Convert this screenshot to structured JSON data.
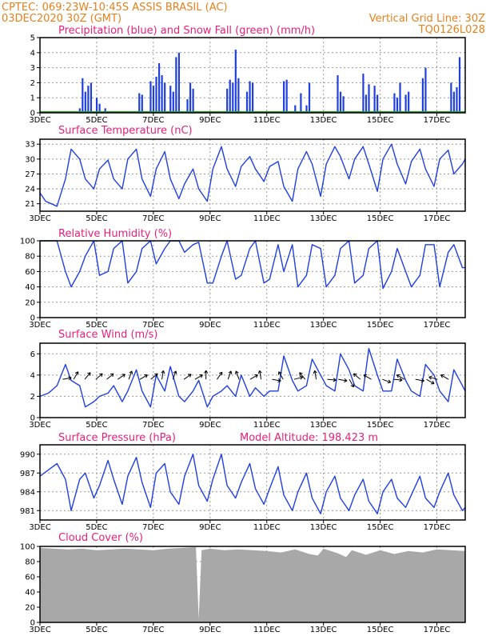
{
  "header": {
    "line1": "CPTEC:    069:23W-10:45S   ASSIS BRASIL (AC)",
    "line2_left": "03DEC2020 30Z (GMT)",
    "line2_right": "Vertical Grid Line: 30Z",
    "line3_right": "TQ0126L028"
  },
  "colors": {
    "header": "#e8801a",
    "panel_title": "#e8207a",
    "series_blue": "#1f3fe0",
    "snow_green": "#2a9a2a",
    "cloud_gray": "#a8a8a8"
  },
  "x_axis_labels": [
    "3DEC",
    "5DEC",
    "7DEC",
    "9DEC",
    "11DEC",
    "13DEC",
    "15DEC",
    "17DEC"
  ],
  "chart_data": [
    {
      "type": "bar",
      "title": "Precipitation (blue) and Snow Fall (green) (mm/h)",
      "ylim": [
        0,
        5
      ],
      "yticks": [
        "0",
        "1",
        "2",
        "3",
        "4",
        "5"
      ],
      "series": [
        {
          "name": "Precipitation",
          "color": "#1f3fe0",
          "x": [
            4.4,
            4.5,
            4.6,
            4.7,
            4.8,
            5.0,
            5.1,
            5.3,
            5.4,
            6.5,
            6.6,
            6.9,
            7.0,
            7.1,
            7.2,
            7.3,
            7.4,
            7.6,
            7.7,
            7.8,
            7.9,
            8.2,
            8.3,
            8.4,
            9.6,
            9.7,
            9.8,
            9.9,
            10.0,
            10.3,
            10.4,
            10.5,
            11.6,
            11.7,
            11.8,
            12.0,
            12.2,
            12.4,
            12.5,
            13.5,
            13.6,
            13.7,
            14.4,
            14.5,
            14.6,
            14.8,
            14.9,
            15.5,
            15.6,
            15.7,
            15.9,
            16.0,
            16.5,
            16.6,
            17.5,
            17.6,
            17.7,
            17.8
          ],
          "y": [
            0.3,
            2.3,
            1.4,
            1.8,
            2.0,
            1.0,
            0.6,
            0.3,
            0.1,
            1.3,
            1.2,
            2.1,
            1.8,
            2.4,
            3.3,
            2.5,
            2.0,
            1.8,
            1.4,
            3.7,
            4.0,
            0.9,
            2.0,
            1.6,
            1.6,
            2.2,
            2.0,
            4.2,
            2.3,
            1.4,
            2.1,
            2.0,
            2.1,
            2.2,
            0.1,
            0.5,
            1.3,
            0.5,
            2.0,
            2.5,
            1.4,
            1.1,
            2.6,
            1.2,
            1.9,
            1.8,
            1.2,
            1.3,
            1.0,
            2.0,
            1.2,
            1.4,
            2.3,
            3.0,
            2.0,
            1.4,
            1.7,
            3.7
          ]
        },
        {
          "name": "Snow Fall",
          "color": "#2a9a2a",
          "x": [
            3.0,
            18.0
          ],
          "y": [
            0,
            0
          ]
        }
      ]
    },
    {
      "type": "line",
      "title": "Surface Temperature (nC)",
      "ylim": [
        19.5,
        34
      ],
      "yticks": [
        "21",
        "24",
        "27",
        "30",
        "33"
      ],
      "series": [
        {
          "name": "Temperature",
          "color": "#1f3fe0",
          "x": [
            3.0,
            3.2,
            3.4,
            3.6,
            3.9,
            4.1,
            4.4,
            4.6,
            4.9,
            5.1,
            5.4,
            5.6,
            5.9,
            6.1,
            6.4,
            6.6,
            6.9,
            7.1,
            7.4,
            7.6,
            7.9,
            8.1,
            8.4,
            8.6,
            8.9,
            9.1,
            9.4,
            9.6,
            9.9,
            10.1,
            10.4,
            10.6,
            10.9,
            11.1,
            11.4,
            11.6,
            11.9,
            12.1,
            12.4,
            12.6,
            12.9,
            13.1,
            13.4,
            13.6,
            13.9,
            14.1,
            14.4,
            14.6,
            14.9,
            15.1,
            15.4,
            15.6,
            15.9,
            16.1,
            16.4,
            16.6,
            16.9,
            17.1,
            17.4,
            17.6,
            17.9,
            18.0
          ],
          "y": [
            23.2,
            21.5,
            21.0,
            20.5,
            26.0,
            32.0,
            30.0,
            26.0,
            24.0,
            28.0,
            29.8,
            26.0,
            24.0,
            30.0,
            32.0,
            26.0,
            22.5,
            28.0,
            31.5,
            26.0,
            22.0,
            25.0,
            28.0,
            24.0,
            21.5,
            28.0,
            32.5,
            28.0,
            24.5,
            28.5,
            30.5,
            28.0,
            25.5,
            28.5,
            29.5,
            24.5,
            21.5,
            28.0,
            31.5,
            29.0,
            22.5,
            29.0,
            32.5,
            30.5,
            26.0,
            30.0,
            32.5,
            29.0,
            23.5,
            30.0,
            33.0,
            29.0,
            25.0,
            29.5,
            32.0,
            28.0,
            24.5,
            30.0,
            31.8,
            27.0,
            29.0,
            30.0
          ]
        }
      ]
    },
    {
      "type": "line",
      "title": "Relative Humidity (%)",
      "ylim": [
        0,
        100
      ],
      "yticks": [
        "0",
        "20",
        "40",
        "60",
        "80",
        "100"
      ],
      "series": [
        {
          "name": "Relative Humidity",
          "color": "#1f3fe0",
          "x": [
            3.0,
            3.3,
            3.6,
            3.9,
            4.1,
            4.4,
            4.6,
            4.9,
            5.1,
            5.4,
            5.6,
            5.9,
            6.1,
            6.4,
            6.6,
            6.9,
            7.1,
            7.4,
            7.6,
            7.9,
            8.1,
            8.4,
            8.6,
            8.9,
            9.1,
            9.4,
            9.6,
            9.9,
            10.1,
            10.4,
            10.6,
            10.9,
            11.1,
            11.4,
            11.6,
            11.9,
            12.1,
            12.4,
            12.6,
            12.9,
            13.1,
            13.4,
            13.6,
            13.9,
            14.1,
            14.4,
            14.6,
            14.9,
            15.1,
            15.4,
            15.6,
            15.9,
            16.1,
            16.4,
            16.6,
            16.9,
            17.1,
            17.4,
            17.6,
            17.9,
            18.0
          ],
          "y": [
            100,
            100,
            100,
            60,
            40,
            60,
            80,
            100,
            55,
            60,
            90,
            100,
            45,
            60,
            90,
            100,
            70,
            90,
            100,
            100,
            85,
            95,
            98,
            45,
            45,
            80,
            100,
            50,
            55,
            90,
            100,
            45,
            50,
            95,
            60,
            95,
            40,
            55,
            95,
            90,
            40,
            55,
            90,
            100,
            45,
            55,
            90,
            100,
            38,
            60,
            90,
            60,
            40,
            55,
            95,
            95,
            40,
            85,
            95,
            65,
            65
          ]
        }
      ]
    },
    {
      "type": "line",
      "title": "Surface Wind (m/s)",
      "ylim": [
        0,
        7
      ],
      "yticks": [
        "0",
        "2",
        "4",
        "6"
      ],
      "series": [
        {
          "name": "Wind Speed",
          "color": "#1f3fe0",
          "x": [
            3.0,
            3.3,
            3.6,
            3.9,
            4.1,
            4.4,
            4.6,
            4.9,
            5.1,
            5.4,
            5.6,
            5.9,
            6.1,
            6.4,
            6.6,
            6.9,
            7.1,
            7.4,
            7.6,
            7.9,
            8.1,
            8.4,
            8.6,
            8.9,
            9.1,
            9.4,
            9.6,
            9.9,
            10.1,
            10.4,
            10.6,
            10.9,
            11.1,
            11.4,
            11.6,
            11.9,
            12.1,
            12.4,
            12.6,
            12.9,
            13.1,
            13.4,
            13.6,
            13.9,
            14.1,
            14.4,
            14.6,
            14.9,
            15.1,
            15.4,
            15.6,
            15.9,
            16.1,
            16.4,
            16.6,
            16.9,
            17.1,
            17.4,
            17.6,
            17.9,
            18.0
          ],
          "y": [
            2.0,
            2.3,
            3.0,
            5.0,
            3.5,
            3.0,
            1.0,
            1.5,
            2.0,
            2.3,
            3.0,
            1.5,
            2.5,
            4.5,
            2.5,
            1.0,
            4.0,
            2.5,
            4.8,
            2.0,
            1.5,
            2.5,
            3.5,
            1.0,
            2.0,
            2.5,
            3.0,
            2.0,
            4.0,
            2.0,
            2.8,
            2.0,
            2.5,
            2.5,
            5.8,
            3.5,
            2.5,
            3.0,
            5.5,
            4.0,
            3.0,
            2.5,
            6.0,
            4.5,
            3.0,
            2.5,
            6.5,
            4.0,
            2.5,
            2.5,
            5.5,
            3.5,
            2.5,
            2.0,
            5.0,
            4.0,
            2.5,
            1.5,
            4.5,
            3.0,
            2.5
          ]
        }
      ],
      "vector_angles": [
        10,
        60,
        50,
        40,
        40,
        35,
        70,
        30,
        40,
        80,
        70,
        35,
        30,
        90,
        55,
        70,
        110,
        30,
        100,
        -10,
        120,
        15,
        130,
        100,
        -5,
        -10,
        -60,
        140,
        150,
        -20,
        -5,
        150,
        -10,
        -30,
        165,
        150
      ]
    },
    {
      "type": "line",
      "title": "Surface Pressure (hPa)",
      "annotation": "Model Altitude: 198.423  m",
      "ylim": [
        979.5,
        991.5
      ],
      "yticks": [
        "981",
        "984",
        "987",
        "990"
      ],
      "series": [
        {
          "name": "Surface Pressure",
          "color": "#1f3fe0",
          "x": [
            3.0,
            3.3,
            3.6,
            3.9,
            4.1,
            4.4,
            4.6,
            4.9,
            5.1,
            5.4,
            5.6,
            5.9,
            6.1,
            6.4,
            6.6,
            6.9,
            7.1,
            7.4,
            7.6,
            7.9,
            8.1,
            8.4,
            8.6,
            8.9,
            9.1,
            9.4,
            9.6,
            9.9,
            10.1,
            10.4,
            10.6,
            10.9,
            11.1,
            11.4,
            11.6,
            11.9,
            12.1,
            12.4,
            12.6,
            12.9,
            13.1,
            13.4,
            13.6,
            13.9,
            14.1,
            14.4,
            14.6,
            14.9,
            15.1,
            15.4,
            15.6,
            15.9,
            16.1,
            16.4,
            16.6,
            16.9,
            17.1,
            17.4,
            17.6,
            17.9,
            18.0
          ],
          "y": [
            986.5,
            987.5,
            988.5,
            986.0,
            981.0,
            986.0,
            987.0,
            983.0,
            985.0,
            989.0,
            986.0,
            982.0,
            986.5,
            989.5,
            985.5,
            981.5,
            987.0,
            988.5,
            984.0,
            982.0,
            986.5,
            990.0,
            985.0,
            982.5,
            986.0,
            990.0,
            985.0,
            983.0,
            985.5,
            988.5,
            984.5,
            982.0,
            984.5,
            988.0,
            983.5,
            981.0,
            984.0,
            987.0,
            983.0,
            980.5,
            984.0,
            986.5,
            983.0,
            981.0,
            983.5,
            986.0,
            982.5,
            980.5,
            984.0,
            986.0,
            983.0,
            981.5,
            983.5,
            986.5,
            983.0,
            981.5,
            984.0,
            987.0,
            983.5,
            981.0,
            981.5
          ]
        }
      ]
    },
    {
      "type": "area",
      "title": "Cloud Cover (%)",
      "ylim": [
        0,
        100
      ],
      "yticks": [
        "0",
        "20",
        "40",
        "60",
        "80",
        "100"
      ],
      "series": [
        {
          "name": "Cloud Cover",
          "color": "#a8a8a8",
          "x": [
            3.0,
            3.5,
            4.0,
            4.5,
            5.0,
            5.5,
            6.0,
            6.5,
            7.0,
            7.5,
            8.0,
            8.5,
            8.6,
            8.7,
            9.0,
            9.5,
            10.0,
            10.5,
            11.0,
            11.5,
            12.0,
            12.5,
            12.8,
            13.0,
            13.5,
            13.8,
            14.0,
            14.5,
            15.0,
            15.5,
            16.0,
            16.5,
            17.0,
            17.5,
            18.0
          ],
          "y": [
            98,
            97,
            96,
            97,
            95,
            96,
            97,
            96,
            95,
            97,
            98,
            99,
            5,
            95,
            97,
            95,
            96,
            95,
            94,
            92,
            96,
            90,
            88,
            97,
            91,
            86,
            95,
            89,
            95,
            90,
            94,
            92,
            96,
            95,
            94
          ]
        }
      ]
    }
  ]
}
